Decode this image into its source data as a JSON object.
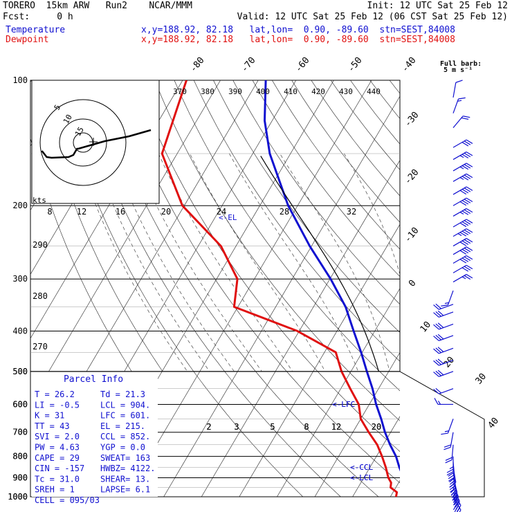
{
  "header": {
    "model_line": "TORERO  15km ARW   Run2    NCAR/MMM",
    "init": "Init: 12 UTC Sat 25 Feb 12",
    "fcst": "Fcst:     0 h",
    "valid": "Valid: 12 UTC Sat 25 Feb 12 (06 CST Sat 25 Feb 12)",
    "temperature_label": "Temperature",
    "dewpoint_label": "Dewpoint",
    "location_info": "x,y=188.92, 82.18   lat,lon=  0.90, -89.60  stn=SEST,84008",
    "temperature_color": "#1010d0",
    "dewpoint_color": "#e01010"
  },
  "barb_key": {
    "title": "Full barb:",
    "value": "5 m s⁻¹"
  },
  "hodograph": {
    "unit": "kts",
    "ring_labels": [
      "5",
      "10",
      "15"
    ],
    "path_points": [
      [
        -34,
        12
      ],
      [
        -30,
        21
      ],
      [
        -26,
        22
      ],
      [
        -12,
        21
      ],
      [
        -8,
        18
      ],
      [
        -6,
        12
      ],
      [
        -5,
        9
      ],
      [
        -4,
        9
      ],
      [
        6,
        4
      ],
      [
        18,
        -2
      ],
      [
        38,
        -9
      ],
      [
        56,
        -18
      ]
    ]
  },
  "parcel_info": {
    "title": "Parcel Info",
    "rows": [
      {
        "left": "T  =   26.2",
        "right": "Td =  21.3"
      },
      {
        "left": "LI =   -0.5",
        "right": "LCL =  904."
      },
      {
        "left": "K  =     31",
        "right": "LFC =  601."
      },
      {
        "left": "TT =     43",
        "right": "EL  =  215."
      },
      {
        "left": "SVI =   2.0",
        "right": "CCL =  852."
      },
      {
        "left": "PW =   4.63",
        "right": "YGP =   0.0"
      },
      {
        "left": "CAPE =   29",
        "right": "SWEAT=  163"
      },
      {
        "left": "CIN =  -157",
        "right": "HWBZ= 4122."
      },
      {
        "left": "Tc =   31.0",
        "right": "SHEAR=  13."
      },
      {
        "left": "SREH =    1",
        "right": "LAPSE=  6.1"
      },
      {
        "left": "CELL = 095/03",
        "right": ""
      }
    ]
  },
  "level_markers": [
    "<-EL",
    "<-LFC",
    "<-CCL",
    "<-LCL"
  ],
  "chart_data": {
    "type": "line",
    "chart_kind": "skew-T log-P thermodynamic diagram",
    "y_axis": {
      "name": "pressure (hPa)",
      "scale": "log",
      "range": [
        1000,
        100
      ],
      "tick_labels": [
        "100",
        "200",
        "300",
        "400",
        "500",
        "600",
        "700",
        "800",
        "900",
        "1000"
      ]
    },
    "isotherm_labels": [
      "-80",
      "-70",
      "-60",
      "-50",
      "-40",
      "-30",
      "-20",
      "-10",
      "0",
      "10",
      "20",
      "30",
      "40"
    ],
    "theta_e_labels": [
      "370",
      "380",
      "390",
      "400",
      "410",
      "420",
      "430",
      "440"
    ],
    "mixing_ratio_labels_upper": [
      "8",
      "12",
      "16",
      "20",
      "24",
      "28",
      "32"
    ],
    "mixing_ratio_labels_lower": [
      "2",
      "3",
      "5",
      "8",
      "12",
      "20"
    ],
    "theta_labels": [
      "290",
      "280",
      "270"
    ],
    "series": [
      {
        "name": "Temperature",
        "color": "#1010d0",
        "points": [
          [
            1000,
            25.5
          ],
          [
            975,
            23.5
          ],
          [
            950,
            22.2
          ],
          [
            925,
            21.6
          ],
          [
            900,
            20.5
          ],
          [
            850,
            17.8
          ],
          [
            800,
            15.2
          ],
          [
            750,
            11.8
          ],
          [
            700,
            8.5
          ],
          [
            650,
            5.4
          ],
          [
            600,
            1.8
          ],
          [
            550,
            -1.6
          ],
          [
            500,
            -5.8
          ],
          [
            450,
            -10.3
          ],
          [
            400,
            -15.6
          ],
          [
            350,
            -21.5
          ],
          [
            300,
            -29.8
          ],
          [
            250,
            -40.5
          ],
          [
            200,
            -52.5
          ],
          [
            150,
            -65.5
          ],
          [
            125,
            -72
          ],
          [
            100,
            -78
          ]
        ]
      },
      {
        "name": "Dewpoint",
        "color": "#e01010",
        "points": [
          [
            1000,
            21.5
          ],
          [
            975,
            21
          ],
          [
            950,
            18.6
          ],
          [
            925,
            18
          ],
          [
            900,
            16.5
          ],
          [
            850,
            14.2
          ],
          [
            800,
            11.5
          ],
          [
            750,
            8.4
          ],
          [
            700,
            4.2
          ],
          [
            650,
            0
          ],
          [
            600,
            -2.8
          ],
          [
            550,
            -7.5
          ],
          [
            500,
            -12.5
          ],
          [
            450,
            -17
          ],
          [
            400,
            -30.5
          ],
          [
            350,
            -51
          ],
          [
            300,
            -54.5
          ],
          [
            250,
            -64
          ],
          [
            200,
            -80.5
          ],
          [
            150,
            -94
          ],
          [
            100,
            -99
          ]
        ]
      }
    ],
    "wind_barbs": [
      {
        "p": 1000,
        "dir": 150,
        "spd": 8
      },
      {
        "p": 975,
        "dir": 150,
        "spd": 9
      },
      {
        "p": 950,
        "dir": 155,
        "spd": 9
      },
      {
        "p": 925,
        "dir": 160,
        "spd": 8
      },
      {
        "p": 900,
        "dir": 165,
        "spd": 7
      },
      {
        "p": 875,
        "dir": 170,
        "spd": 7
      },
      {
        "p": 850,
        "dir": 170,
        "spd": 6
      },
      {
        "p": 825,
        "dir": 175,
        "spd": 6
      },
      {
        "p": 800,
        "dir": 180,
        "spd": 5
      },
      {
        "p": 750,
        "dir": 185,
        "spd": 4
      },
      {
        "p": 700,
        "dir": 190,
        "spd": 4
      },
      {
        "p": 650,
        "dir": 200,
        "spd": 3
      },
      {
        "p": 600,
        "dir": 270,
        "spd": 3
      },
      {
        "p": 550,
        "dir": 250,
        "spd": 4
      },
      {
        "p": 500,
        "dir": 250,
        "spd": 6
      },
      {
        "p": 470,
        "dir": 250,
        "spd": 6
      },
      {
        "p": 440,
        "dir": 250,
        "spd": 6
      },
      {
        "p": 410,
        "dir": 250,
        "spd": 6
      },
      {
        "p": 385,
        "dir": 250,
        "spd": 6
      },
      {
        "p": 360,
        "dir": 250,
        "spd": 6
      },
      {
        "p": 345,
        "dir": 250,
        "spd": 4
      },
      {
        "p": 320,
        "dir": 200,
        "spd": 3
      },
      {
        "p": 305,
        "dir": 60,
        "spd": 5
      },
      {
        "p": 290,
        "dir": 60,
        "spd": 6
      },
      {
        "p": 275,
        "dir": 60,
        "spd": 8
      },
      {
        "p": 262,
        "dir": 60,
        "spd": 8
      },
      {
        "p": 250,
        "dir": 60,
        "spd": 8
      },
      {
        "p": 237,
        "dir": 60,
        "spd": 9
      },
      {
        "p": 225,
        "dir": 60,
        "spd": 8
      },
      {
        "p": 212,
        "dir": 60,
        "spd": 7
      },
      {
        "p": 200,
        "dir": 60,
        "spd": 8
      },
      {
        "p": 188,
        "dir": 60,
        "spd": 8
      },
      {
        "p": 175,
        "dir": 60,
        "spd": 7
      },
      {
        "p": 165,
        "dir": 60,
        "spd": 7
      },
      {
        "p": 155,
        "dir": 60,
        "spd": 7
      },
      {
        "p": 145,
        "dir": 60,
        "spd": 6
      },
      {
        "p": 130,
        "dir": 40,
        "spd": 4
      },
      {
        "p": 120,
        "dir": 20,
        "spd": 3
      },
      {
        "p": 110,
        "dir": 10,
        "spd": 2
      }
    ]
  }
}
